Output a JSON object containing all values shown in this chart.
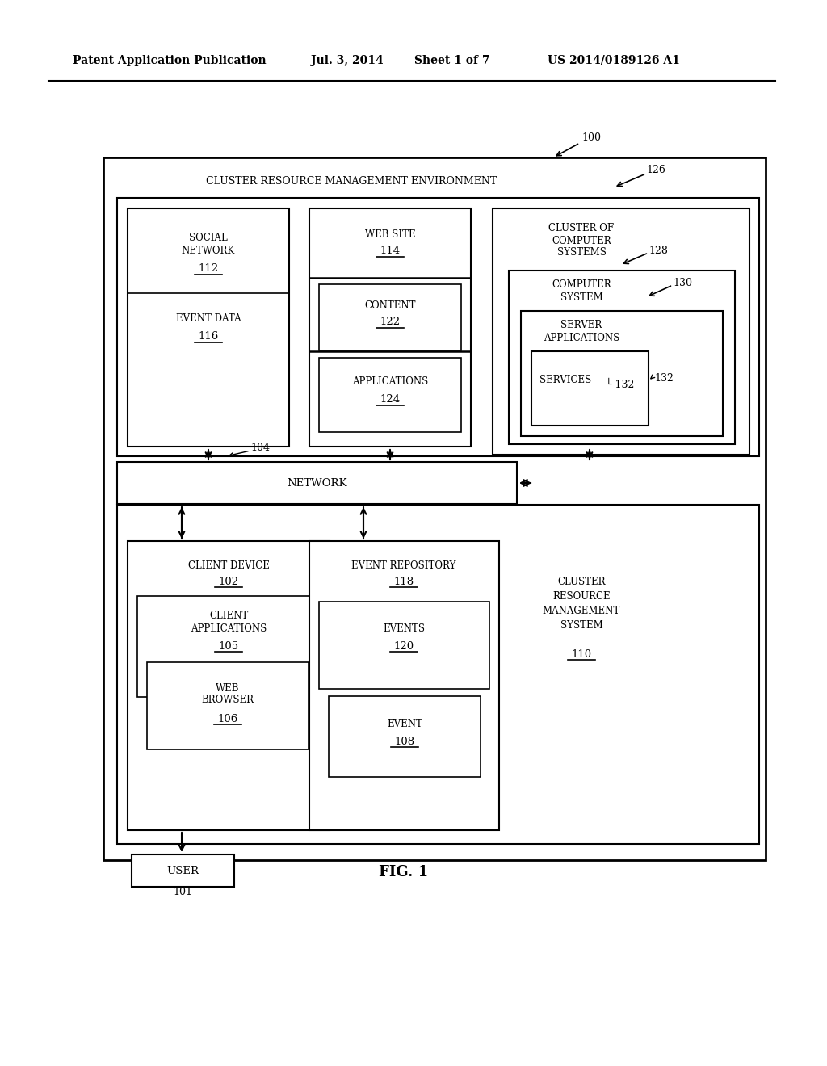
{
  "title_header": "Patent Application Publication",
  "date_header": "Jul. 3, 2014",
  "sheet_header": "Sheet 1 of 7",
  "patent_header": "US 2014/0189126 A1",
  "fig_label": "FIG. 1",
  "bg_color": "#ffffff",
  "line_color": "#000000",
  "font_color": "#000000"
}
